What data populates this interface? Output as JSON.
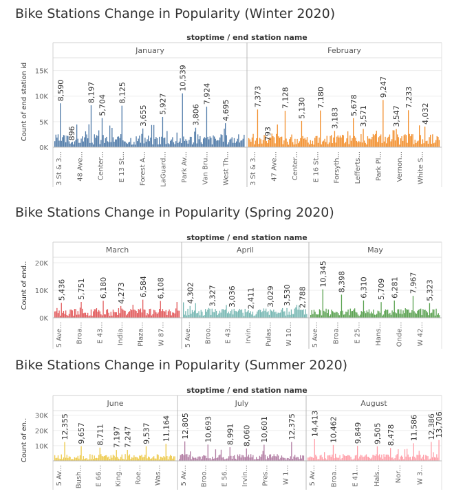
{
  "sections": [
    {
      "title": "Bike Stations Change in  Popularity (Winter 2020)"
    },
    {
      "title": "Bike Stations Change in  Popularity (Spring 2020)"
    },
    {
      "title": "Bike Stations Change in  Popularity (Summer 2020)"
    }
  ],
  "chart_data": [
    {
      "type": "bar",
      "title": "Bike Stations Change in  Popularity (Winter 2020)",
      "column_header": "stoptime / end station name",
      "ylabel": "Count of end station id",
      "yticks": [
        {
          "v": 0,
          "label": "0K"
        },
        {
          "v": 5000,
          "label": "5K"
        },
        {
          "v": 10000,
          "label": "10K"
        },
        {
          "v": 15000,
          "label": "15K"
        }
      ],
      "ylim": [
        0,
        17500
      ],
      "grid": true,
      "panes": [
        {
          "name": "January",
          "color": "#4e79a7",
          "peaks": [
            {
              "x": 0.25,
              "v": 8590,
              "label": "8,590"
            },
            {
              "x": 0.8,
              "v": 896,
              "label": "896"
            },
            {
              "x": 1.75,
              "v": 8197,
              "label": "8,197"
            },
            {
              "x": 2.25,
              "v": 5704,
              "label": "5,704"
            },
            {
              "x": 3.2,
              "v": 8125,
              "label": "8,125"
            },
            {
              "x": 4.2,
              "v": 3655,
              "label": "3,655"
            },
            {
              "x": 5.15,
              "v": 5927,
              "label": "5,927"
            },
            {
              "x": 6.1,
              "v": 10539,
              "label": "10,539"
            },
            {
              "x": 6.75,
              "v": 3806,
              "label": "3,806"
            },
            {
              "x": 7.3,
              "v": 7924,
              "label": "7,924"
            },
            {
              "x": 8.2,
              "v": 4695,
              "label": "4,695"
            }
          ],
          "ticks": [
            "3 St & 3...",
            "48 Ave...",
            "Center...",
            "E 13 St...",
            "Forest A...",
            "LaGuard...",
            "Park Av...",
            "Van Bru...",
            "West Th..."
          ]
        },
        {
          "name": "February",
          "color": "#f28e2b",
          "peaks": [
            {
              "x": 0.4,
              "v": 7373,
              "label": "7,373"
            },
            {
              "x": 0.9,
              "v": 793,
              "label": "793"
            },
            {
              "x": 1.75,
              "v": 7128,
              "label": "7,128"
            },
            {
              "x": 2.5,
              "v": 5130,
              "label": "5,130"
            },
            {
              "x": 3.4,
              "v": 7180,
              "label": "7,180"
            },
            {
              "x": 4.1,
              "v": 3183,
              "label": "3,183"
            },
            {
              "x": 5.0,
              "v": 5678,
              "label": "5,678"
            },
            {
              "x": 5.45,
              "v": 3571,
              "label": "3,571"
            },
            {
              "x": 6.4,
              "v": 9247,
              "label": "9,247"
            },
            {
              "x": 7.05,
              "v": 3547,
              "label": "3,547"
            },
            {
              "x": 7.65,
              "v": 7233,
              "label": "7,233"
            },
            {
              "x": 8.4,
              "v": 4032,
              "label": "4,032"
            }
          ],
          "ticks": [
            "3 St & 3...",
            "47 Ave...",
            "Center...",
            "E 16 St...",
            "Forsyth...",
            "Lefferts...",
            "Park Pl...",
            "Vernon...",
            "White S..."
          ]
        }
      ]
    },
    {
      "type": "bar",
      "title": "Bike Stations Change in  Popularity (Spring 2020)",
      "column_header": "stoptime / end station name",
      "ylabel": "Count of end..",
      "yticks": [
        {
          "v": 0,
          "label": "0K"
        },
        {
          "v": 10000,
          "label": "10K"
        },
        {
          "v": 20000,
          "label": "20K"
        }
      ],
      "ylim": [
        0,
        22000
      ],
      "grid": true,
      "panes": [
        {
          "name": "March",
          "color": "#e15759",
          "peaks": [
            {
              "x": 0.3,
              "v": 5436,
              "label": "5,436"
            },
            {
              "x": 1.3,
              "v": 5751,
              "label": "5,751"
            },
            {
              "x": 2.35,
              "v": 6180,
              "label": "6,180"
            },
            {
              "x": 3.25,
              "v": 4273,
              "label": "4,273"
            },
            {
              "x": 4.3,
              "v": 6584,
              "label": "6,584"
            },
            {
              "x": 5.2,
              "v": 6108,
              "label": "6,108"
            }
          ],
          "ticks": [
            "5 Ave...",
            "Broa...",
            "E 43...",
            "India...",
            "Plaza...",
            "W 87..."
          ]
        },
        {
          "name": "April",
          "color": "#76b7b2",
          "peaks": [
            {
              "x": 0.3,
              "v": 4302,
              "label": "4,302"
            },
            {
              "x": 1.4,
              "v": 3327,
              "label": "3,327"
            },
            {
              "x": 2.4,
              "v": 3036,
              "label": "3,036"
            },
            {
              "x": 3.3,
              "v": 2411,
              "label": "2,411"
            },
            {
              "x": 4.3,
              "v": 3029,
              "label": "3,029"
            },
            {
              "x": 5.1,
              "v": 3530,
              "label": "3,530"
            },
            {
              "x": 5.9,
              "v": 2788,
              "label": "2,788"
            }
          ],
          "ticks": [
            "5 Ave...",
            "Broo...",
            "E 43...",
            "Irvin...",
            "Pulas...",
            "W 10..."
          ]
        },
        {
          "name": "May",
          "color": "#59a14f",
          "peaks": [
            {
              "x": 0.6,
              "v": 10345,
              "label": "10,345"
            },
            {
              "x": 1.45,
              "v": 8398,
              "label": "8,398"
            },
            {
              "x": 2.5,
              "v": 6310,
              "label": "6,310"
            },
            {
              "x": 3.35,
              "v": 5709,
              "label": "5,709"
            },
            {
              "x": 3.95,
              "v": 6281,
              "label": "6,281"
            },
            {
              "x": 4.85,
              "v": 7967,
              "label": "7,967"
            },
            {
              "x": 5.65,
              "v": 5323,
              "label": "5,323"
            }
          ],
          "ticks": [
            "5 Ave...",
            "Broa...",
            "E 25...",
            "Hans...",
            "Onde...",
            "W 42..."
          ]
        }
      ]
    },
    {
      "type": "bar",
      "title": "Bike Stations Change in  Popularity (Summer 2020)",
      "column_header": "stoptime / end station name",
      "ylabel": "Count of en..",
      "yticks": [
        {
          "v": 10000,
          "label": "10K"
        },
        {
          "v": 20000,
          "label": "20K"
        },
        {
          "v": 30000,
          "label": "30K"
        }
      ],
      "ylim": [
        0,
        33000
      ],
      "grid": true,
      "panes": [
        {
          "name": "June",
          "color": "#edc948",
          "peaks": [
            {
              "x": 0.5,
              "v": 12355,
              "label": "12,355"
            },
            {
              "x": 1.35,
              "v": 9657,
              "label": "9,657"
            },
            {
              "x": 2.3,
              "v": 8711,
              "label": "8,711"
            },
            {
              "x": 3.1,
              "v": 7197,
              "label": "7,197"
            },
            {
              "x": 3.65,
              "v": 7247,
              "label": "7,247"
            },
            {
              "x": 4.6,
              "v": 9537,
              "label": "9,537"
            },
            {
              "x": 5.6,
              "v": 11164,
              "label": "11,164"
            }
          ],
          "ticks": [
            "5 Av...",
            "Bush...",
            "E 66...",
            "King...",
            "Roe...",
            "Was..."
          ]
        },
        {
          "name": "July",
          "color": "#b07aa1",
          "peaks": [
            {
              "x": 0.25,
              "v": 12805,
              "label": "12,805"
            },
            {
              "x": 1.4,
              "v": 10693,
              "label": "10,693"
            },
            {
              "x": 2.5,
              "v": 8991,
              "label": "8,991"
            },
            {
              "x": 3.3,
              "v": 8060,
              "label": "8,060"
            },
            {
              "x": 4.15,
              "v": 10601,
              "label": "10,601"
            },
            {
              "x": 5.5,
              "v": 12375,
              "label": "12,375"
            }
          ],
          "ticks": [
            "5 Av...",
            "Broo...",
            "E 56...",
            "Irvin...",
            "Pres...",
            "W 1..."
          ]
        },
        {
          "name": "August",
          "color": "#ff9da7",
          "peaks": [
            {
              "x": 0.3,
              "v": 14413,
              "label": "14,413"
            },
            {
              "x": 1.2,
              "v": 10462,
              "label": "10,462"
            },
            {
              "x": 2.3,
              "v": 9849,
              "label": "9,849"
            },
            {
              "x": 3.2,
              "v": 9505,
              "label": "9,505"
            },
            {
              "x": 3.85,
              "v": 8478,
              "label": "8,478"
            },
            {
              "x": 4.9,
              "v": 11586,
              "label": "11,586"
            },
            {
              "x": 5.75,
              "v": 12386,
              "label": "12,386"
            },
            {
              "x": 6.35,
              "v": 13706,
              "label": "13,706"
            }
          ],
          "ticks": [
            "5 Av...",
            "Broa...",
            "E 41...",
            "Hals...",
            "Nor...",
            "W 3..."
          ]
        }
      ]
    }
  ]
}
